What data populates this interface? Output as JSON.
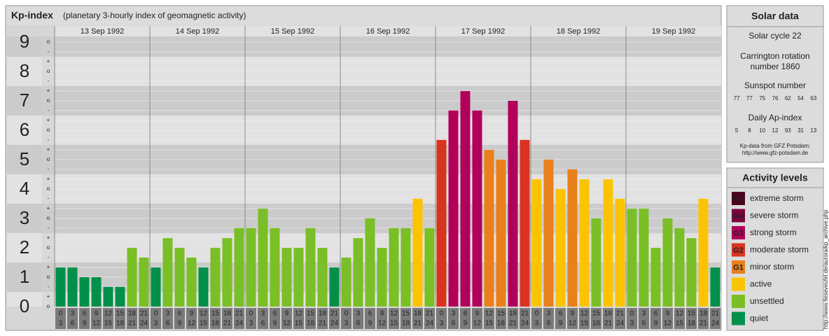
{
  "chart_data": {
    "type": "bar",
    "title": "Kp-index",
    "subtitle": "(planetary 3-hourly index of geomagnetic activity)",
    "ylim": [
      0,
      9
    ],
    "yticks": [
      0,
      1,
      2,
      3,
      4,
      5,
      6,
      7,
      8,
      9
    ],
    "minor_ticks": [
      {
        "value": 0,
        "label": "o"
      },
      {
        "value": 0.33,
        "label": "+"
      },
      {
        "value": 0.67,
        "label": "-"
      },
      {
        "value": 1,
        "label": "o"
      },
      {
        "value": 1.33,
        "label": "+"
      },
      {
        "value": 1.67,
        "label": "-"
      },
      {
        "value": 2,
        "label": "o"
      },
      {
        "value": 2.33,
        "label": "+"
      },
      {
        "value": 2.67,
        "label": "-"
      },
      {
        "value": 3,
        "label": "o"
      },
      {
        "value": 3.33,
        "label": "+"
      },
      {
        "value": 3.67,
        "label": "-"
      },
      {
        "value": 4,
        "label": "o"
      },
      {
        "value": 4.33,
        "label": "+"
      },
      {
        "value": 4.67,
        "label": "-"
      },
      {
        "value": 5,
        "label": "o"
      },
      {
        "value": 5.33,
        "label": "+"
      },
      {
        "value": 5.67,
        "label": "-"
      },
      {
        "value": 6,
        "label": "o"
      },
      {
        "value": 6.33,
        "label": "+"
      },
      {
        "value": 6.67,
        "label": "-"
      },
      {
        "value": 7,
        "label": "o"
      },
      {
        "value": 7.33,
        "label": "+"
      },
      {
        "value": 7.67,
        "label": "-"
      },
      {
        "value": 8,
        "label": "o"
      },
      {
        "value": 8.33,
        "label": "+"
      },
      {
        "value": 8.67,
        "label": "-"
      },
      {
        "value": 9,
        "label": "o"
      }
    ],
    "interval_starts": [
      0,
      3,
      6,
      9,
      12,
      15,
      18,
      21
    ],
    "interval_ends": [
      3,
      6,
      9,
      12,
      15,
      18,
      21,
      24
    ],
    "series": [
      {
        "name": "13 Sep 1992",
        "values": [
          1.33,
          1.33,
          1,
          1,
          0.67,
          0.67,
          2,
          1.67
        ],
        "colors": [
          "#00904a",
          "#00904a",
          "#00904a",
          "#00904a",
          "#00904a",
          "#00904a",
          "#7abf26",
          "#7abf26"
        ]
      },
      {
        "name": "14 Sep 1992",
        "values": [
          1.33,
          2.33,
          2,
          1.67,
          1.33,
          2,
          2.33,
          2.67
        ],
        "colors": [
          "#00904a",
          "#7abf26",
          "#7abf26",
          "#7abf26",
          "#00904a",
          "#7abf26",
          "#7abf26",
          "#7abf26"
        ]
      },
      {
        "name": "15 Sep 1992",
        "values": [
          2.67,
          3.33,
          2.67,
          2,
          2,
          2.67,
          2,
          1.33
        ],
        "colors": [
          "#7abf26",
          "#7abf26",
          "#7abf26",
          "#7abf26",
          "#7abf26",
          "#7abf26",
          "#7abf26",
          "#00904a"
        ]
      },
      {
        "name": "16 Sep 1992",
        "values": [
          1.67,
          2.33,
          3,
          2,
          2.67,
          2.67,
          3.67,
          2.67
        ],
        "colors": [
          "#7abf26",
          "#7abf26",
          "#7abf26",
          "#7abf26",
          "#7abf26",
          "#7abf26",
          "#fcc400",
          "#7abf26"
        ]
      },
      {
        "name": "17 Sep 1992",
        "values": [
          5.67,
          6.67,
          7.33,
          6.67,
          5.33,
          5,
          7,
          5.67
        ],
        "colors": [
          "#d93320",
          "#b0005a",
          "#b0005a",
          "#b0005a",
          "#e8801c",
          "#e8801c",
          "#b0005a",
          "#d93320"
        ]
      },
      {
        "name": "18 Sep 1992",
        "values": [
          4.33,
          5,
          4,
          4.67,
          4.33,
          3,
          4.33,
          3.67
        ],
        "colors": [
          "#fcc400",
          "#e8801c",
          "#fcc400",
          "#e8801c",
          "#fcc400",
          "#7abf26",
          "#fcc400",
          "#fcc400"
        ]
      },
      {
        "name": "19 Sep 1992",
        "values": [
          3.33,
          3.33,
          2,
          3,
          2.67,
          2.33,
          3.67,
          1.33
        ],
        "colors": [
          "#7abf26",
          "#7abf26",
          "#7abf26",
          "#7abf26",
          "#7abf26",
          "#7abf26",
          "#fcc400",
          "#00904a"
        ]
      }
    ]
  },
  "solar_data": {
    "title": "Solar data",
    "solar_cycle": "Solar cycle 22",
    "carrington": [
      "Carrington rotation",
      "number 1860"
    ],
    "sunspot_title": "Sunspot number",
    "sunspot_values": [
      77,
      77,
      75,
      76,
      62,
      54,
      63
    ],
    "ap_title": "Daily Ap-index",
    "ap_values": [
      5,
      8,
      10,
      12,
      93,
      31,
      13
    ],
    "source": [
      "Kp-data from GFZ Potsdam:",
      "http://www.gfz-potsdam.de"
    ]
  },
  "activity_levels": {
    "title": "Activity levels",
    "levels": [
      {
        "badge": "G5",
        "name": "extreme storm",
        "color": "#4d0020"
      },
      {
        "badge": "G4",
        "name": "severe storm",
        "color": "#7f003d"
      },
      {
        "badge": "G3",
        "name": "strong storm",
        "color": "#b0005a"
      },
      {
        "badge": "G2",
        "name": "moderate storm",
        "color": "#d93320"
      },
      {
        "badge": "G1",
        "name": "minor storm",
        "color": "#e8801c"
      },
      {
        "name": "active",
        "color": "#fcc400"
      },
      {
        "name": "unsettled",
        "color": "#7abf26"
      },
      {
        "name": "quiet",
        "color": "#00904a"
      }
    ]
  },
  "credit": "http://www.fieseveufel.de/aurora/kp_archive.php"
}
